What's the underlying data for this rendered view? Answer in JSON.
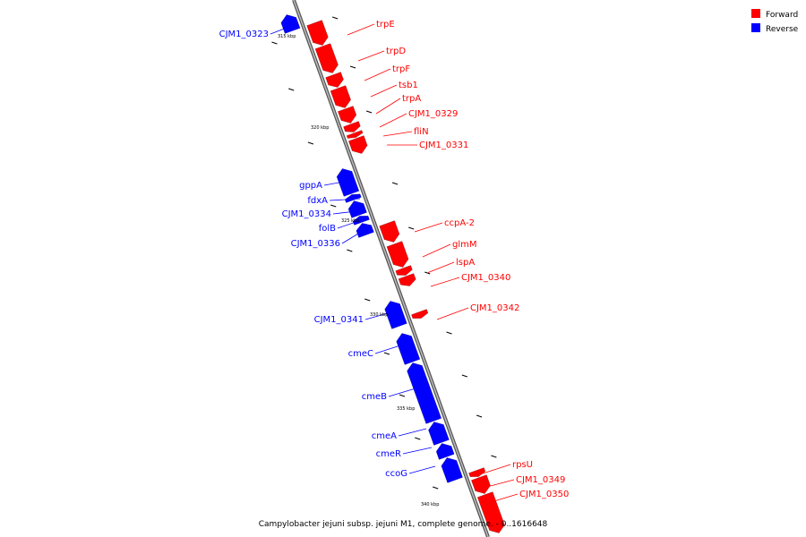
{
  "title": "Campylobacter jejuni subsp. jejuni M1, complete genome. - 0..1616648",
  "legend": [
    {
      "label": "Forward",
      "color": "#ff0000"
    },
    {
      "label": "Reverse",
      "color": "#0000ff"
    }
  ],
  "colors": {
    "forward": "#ff0000",
    "reverse": "#0000ff",
    "backbone": "#888888"
  },
  "scale_labels": [
    "315 kbp",
    "320 kbp",
    "325 kbp",
    "330 kbp",
    "335 kbp",
    "340 kbp"
  ],
  "forward_genes": [
    "trpE",
    "trpD",
    "trpF",
    "tsb1",
    "trpA",
    "CJM1_0329",
    "fliN",
    "CJM1_0331",
    "ccpA-2",
    "glmM",
    "lspA",
    "CJM1_0340",
    "CJM1_0342",
    "rpsU",
    "CJM1_0349",
    "CJM1_0350"
  ],
  "reverse_genes": [
    "CJM1_0323",
    "gppA",
    "fdxA",
    "CJM1_0334",
    "folB",
    "CJM1_0336",
    "CJM1_0341",
    "cmeC",
    "cmeB",
    "cmeA",
    "cmeR",
    "ccoG"
  ]
}
